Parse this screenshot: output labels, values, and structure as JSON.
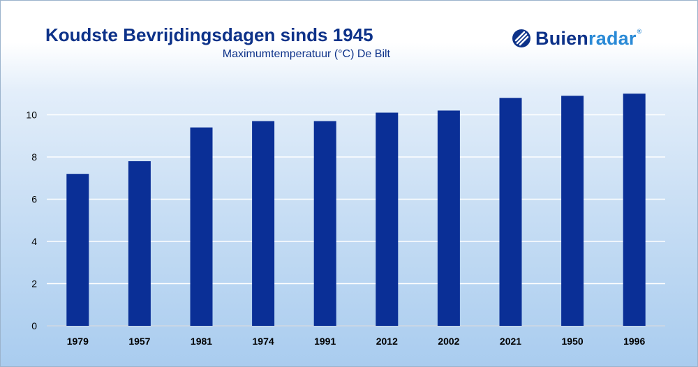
{
  "header": {
    "title": "Koudste Bevrijdingsdagen sinds 1945",
    "subtitle": "Maximumtemperatuur (°C) De Bilt"
  },
  "brand": {
    "name_part1": "Buien",
    "name_part2": "radar",
    "registered": "®",
    "color_dark": "#0d3289",
    "color_light": "#2a8ad6"
  },
  "chart_data": {
    "type": "bar",
    "categories": [
      "1979",
      "1957",
      "1981",
      "1974",
      "1991",
      "2012",
      "2002",
      "2021",
      "1950",
      "1996"
    ],
    "values": [
      7.2,
      7.8,
      9.4,
      9.7,
      9.7,
      10.1,
      10.2,
      10.8,
      10.9,
      11.0
    ],
    "title": "Koudste Bevrijdingsdagen sinds 1945",
    "subtitle": "Maximumtemperatuur (°C) De Bilt",
    "xlabel": "",
    "ylabel": "",
    "ylim": [
      0,
      12
    ],
    "yticks": [
      0,
      2,
      4,
      6,
      8,
      10
    ],
    "grid": true,
    "bar_color": "#0a2f96",
    "grid_color": "#ffffff"
  }
}
